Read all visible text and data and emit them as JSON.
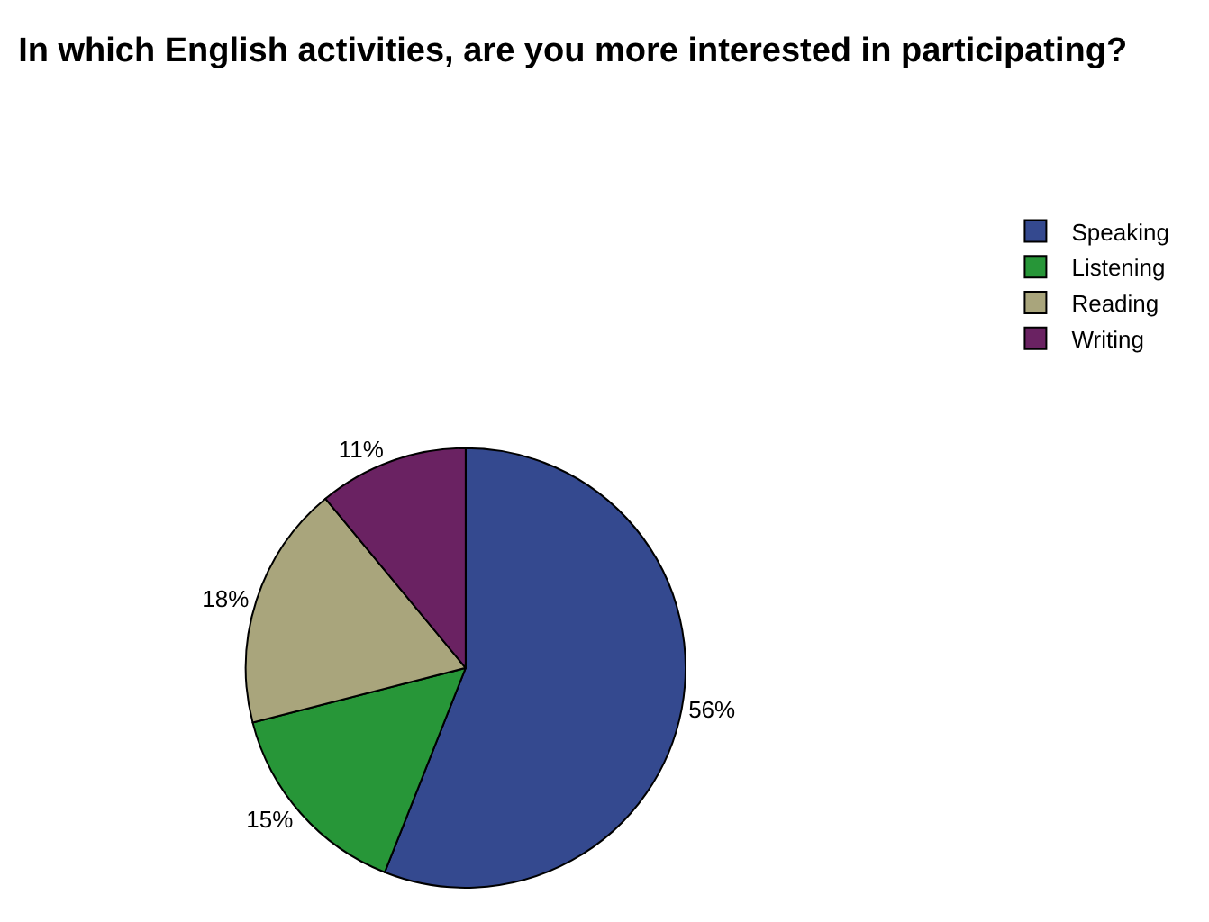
{
  "chart_data": {
    "type": "pie",
    "title": "In which English activities, are you more interested in participating?",
    "categories": [
      "Speaking",
      "Listening",
      "Reading",
      "Writing"
    ],
    "values": [
      56,
      15,
      18,
      11
    ],
    "value_labels": [
      "56%",
      "15%",
      "18%",
      "11%"
    ],
    "colors": [
      "#34498f",
      "#279638",
      "#a9a57c",
      "#6a2262"
    ],
    "legend": "top right"
  }
}
